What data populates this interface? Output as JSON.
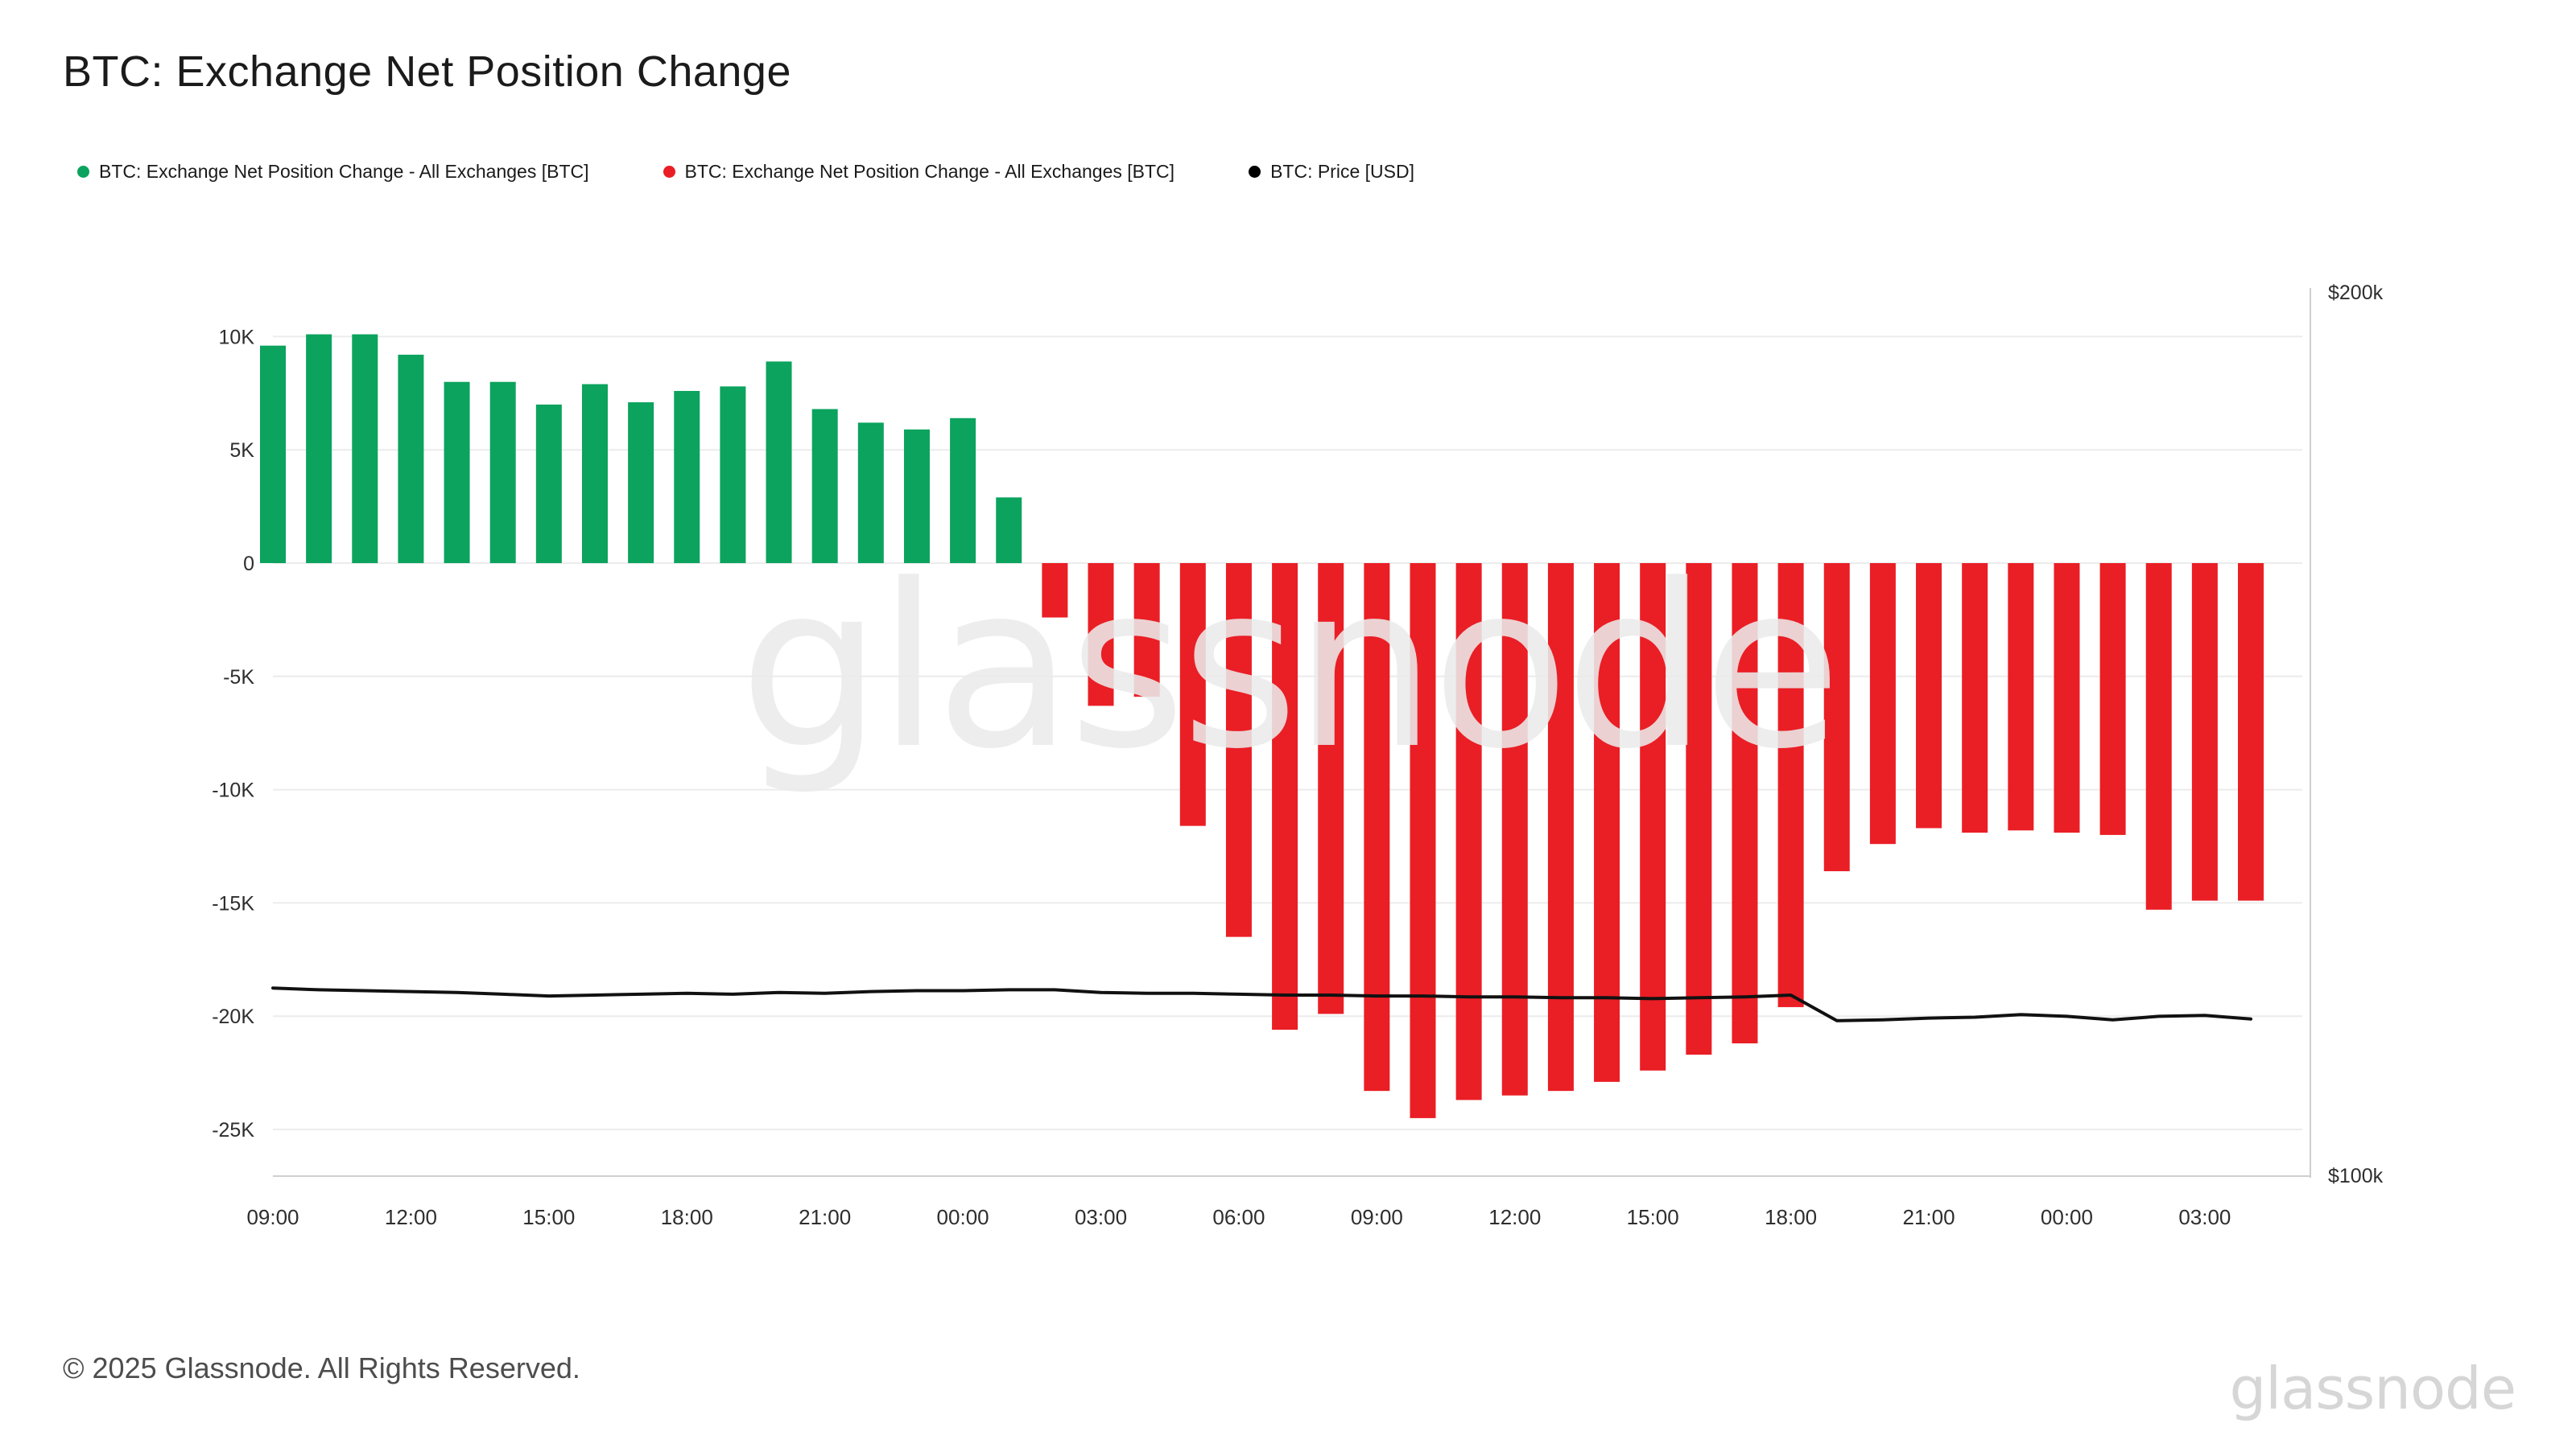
{
  "header": {
    "title": "BTC: Exchange Net Position Change"
  },
  "legend": {
    "items": [
      {
        "label": "BTC: Exchange Net Position Change - All Exchanges [BTC]",
        "color": "#0ba35e"
      },
      {
        "label": "BTC: Exchange Net Position Change - All Exchanges [BTC]",
        "color": "#ea1e25"
      },
      {
        "label": "BTC: Price [USD]",
        "color": "#000000"
      }
    ]
  },
  "chart_data": {
    "type": "bar",
    "title": "BTC: Exchange Net Position Change",
    "x_tick_labels": [
      "09:00",
      "12:00",
      "15:00",
      "18:00",
      "21:00",
      "00:00",
      "03:00",
      "06:00",
      "09:00",
      "12:00",
      "15:00",
      "18:00",
      "21:00",
      "00:00",
      "03:00"
    ],
    "x_tick_every_n_bars": 3,
    "left_axis": {
      "tick_labels": [
        "10K",
        "5K",
        "0",
        "-5K",
        "-10K",
        "-15K",
        "-20K",
        "-25K"
      ],
      "tick_values": [
        10000,
        5000,
        0,
        -5000,
        -10000,
        -15000,
        -20000,
        -25000
      ],
      "range": [
        -27000,
        12000
      ]
    },
    "right_axis": {
      "tick_labels": [
        "$200k",
        "$100k"
      ],
      "tick_values": [
        200000,
        100000
      ],
      "range": [
        100000,
        200000
      ]
    },
    "grid": true,
    "legend_position": "top",
    "series": [
      {
        "name": "BTC: Exchange Net Position Change - All Exchanges [BTC]",
        "type": "bar",
        "positive_color": "#0ba35e",
        "negative_color": "#ea1e25",
        "values": [
          9600,
          10100,
          10100,
          9200,
          8000,
          8000,
          7000,
          7900,
          7100,
          7600,
          7800,
          8900,
          6800,
          6200,
          5900,
          6400,
          2900,
          -2400,
          -6300,
          -5900,
          -11600,
          -16500,
          -20600,
          -19900,
          -23300,
          -24500,
          -23700,
          -23500,
          -23300,
          -22900,
          -22400,
          -21700,
          -21200,
          -19600,
          -13600,
          -12400,
          -11700,
          -11900,
          -11800,
          -11900,
          -12000,
          -15300,
          -14900,
          -14900
        ]
      },
      {
        "name": "BTC: Price [USD]",
        "type": "line",
        "color": "#111111",
        "values": [
          121200,
          121000,
          120900,
          120800,
          120700,
          120500,
          120300,
          120400,
          120500,
          120600,
          120500,
          120700,
          120600,
          120800,
          120900,
          120900,
          121000,
          121000,
          120700,
          120600,
          120600,
          120500,
          120400,
          120400,
          120300,
          120300,
          120200,
          120200,
          120100,
          120100,
          120000,
          120100,
          120200,
          120400,
          117500,
          117600,
          117800,
          117900,
          118200,
          118000,
          117600,
          118000,
          118100,
          117700
        ]
      }
    ]
  },
  "watermark": {
    "text": "glassnode"
  },
  "footer": {
    "copyright": "© 2025 Glassnode. All Rights Reserved.",
    "logo_text": "glassnode"
  }
}
